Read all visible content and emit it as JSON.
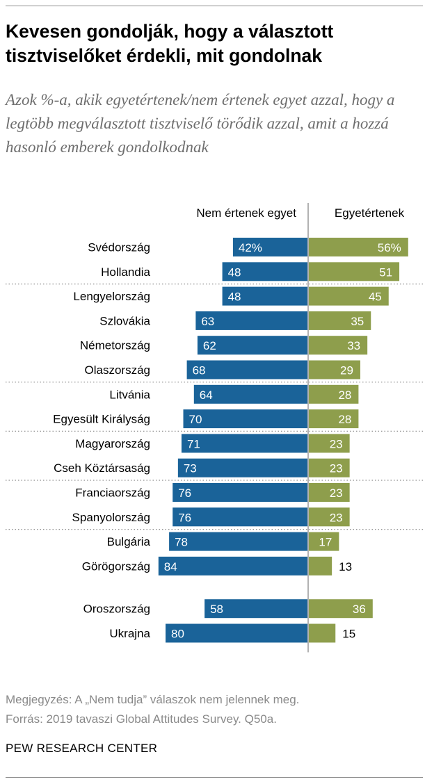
{
  "title": "Kevesen gondolják, hogy a választott tisztviselőket érdekli, mit gondolnak",
  "subtitle": "Azok %-a, akik egyetértenek/nem értenek egyet azzal, hogy a legtöbb megválasztott tisztviselő törődik azzal, amit a hozzá hasonló emberek gondolkodnak",
  "colors": {
    "disagree": "#1a6399",
    "agree": "#8e9e4c",
    "divider": "#999999"
  },
  "chart_data": {
    "type": "bar",
    "orientation": "horizontal-diverging",
    "categories": [
      "Svédország",
      "Hollandia",
      "Lengyelország",
      "Szlovákia",
      "Németország",
      "Olaszország",
      "Litvánia",
      "Egyesült Királyság",
      "Magyarország",
      "Cseh Köztársaság",
      "Franciaország",
      "Spanyolország",
      "Bulgária",
      "Görögország",
      "Oroszország",
      "Ukrajna"
    ],
    "series": [
      {
        "name": "Nem értenek egyet",
        "values": [
          42,
          48,
          48,
          63,
          62,
          68,
          64,
          70,
          71,
          73,
          76,
          76,
          78,
          84,
          58,
          80
        ]
      },
      {
        "name": "Egyetértenek",
        "values": [
          56,
          51,
          45,
          35,
          33,
          29,
          28,
          28,
          23,
          23,
          23,
          23,
          17,
          13,
          36,
          15
        ]
      }
    ],
    "first_label_suffix": "%",
    "groups": [
      [
        "Svédország",
        "Hollandia"
      ],
      [
        "Lengyelország",
        "Szlovákia",
        "Németország",
        "Olaszország"
      ],
      [
        "Litvánia",
        "Egyesült Királyság"
      ],
      [
        "Magyarország",
        "Cseh Köztársaság"
      ],
      [
        "Franciaország",
        "Spanyolország"
      ],
      [
        "Bulgária",
        "Görögország"
      ],
      [
        "Oroszország",
        "Ukrajna"
      ]
    ],
    "legend": [
      "Nem értenek egyet",
      "Egyetértenek"
    ],
    "legend_position": "top",
    "grid": false
  },
  "note": "Megjegyzés: A „Nem tudja” válaszok nem jelennek meg.",
  "source": "Forrás: 2019 tavaszi Global Attitudes Survey. Q50a.",
  "brand": "PEW RESEARCH CENTER"
}
